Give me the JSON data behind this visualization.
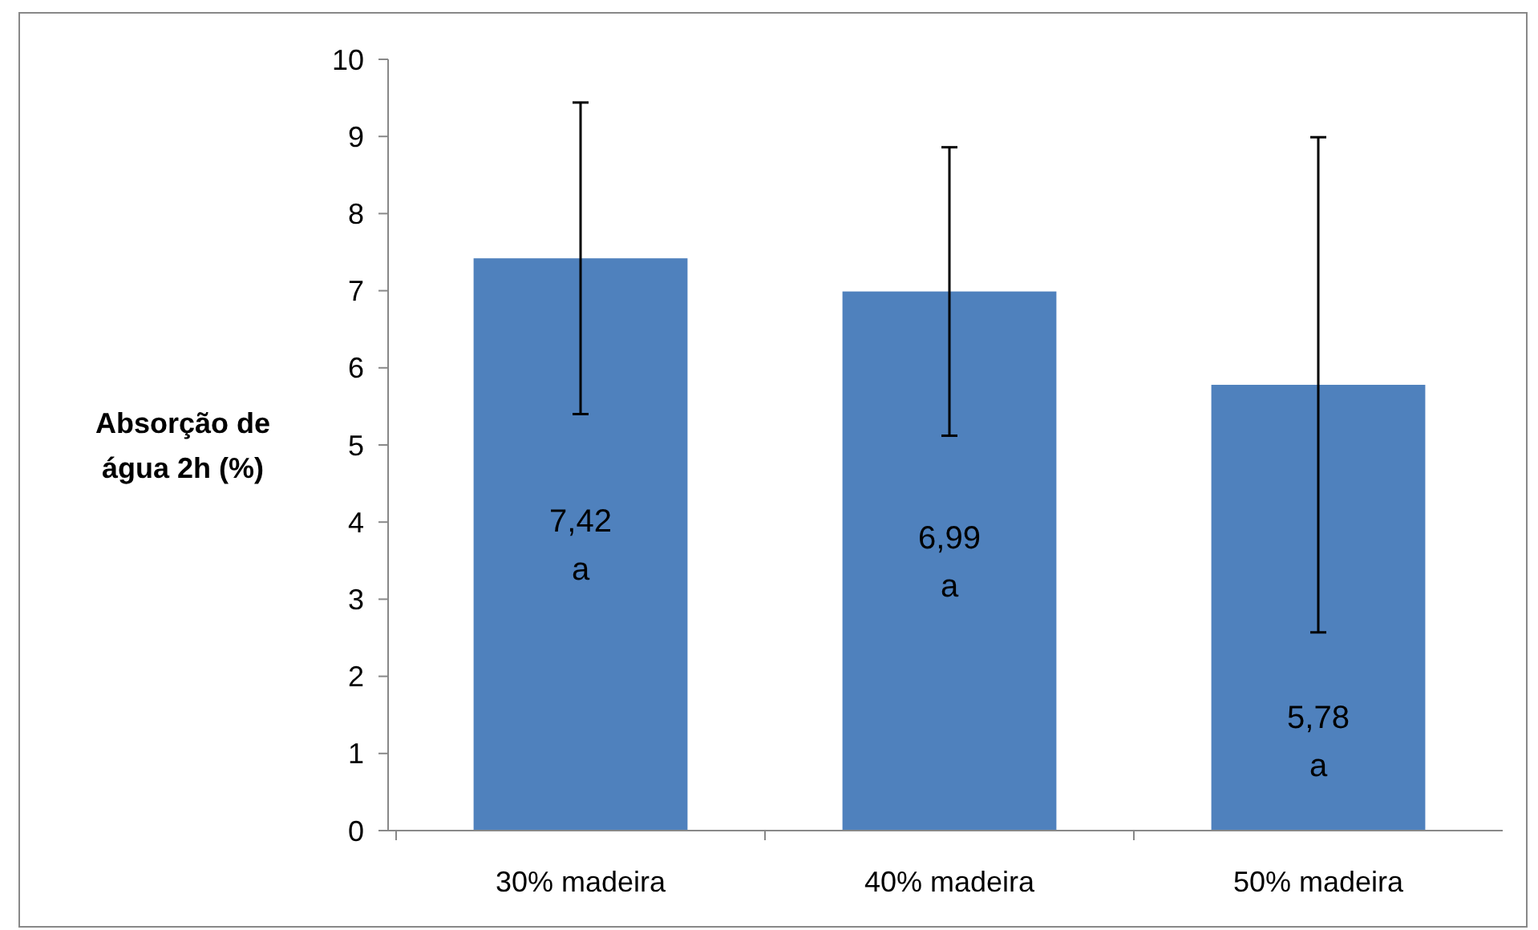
{
  "chart_data": {
    "type": "bar",
    "ylabel": "Absorção de\nágua 2h (%)",
    "categories": [
      "30% madeira",
      "40% madeira",
      "50% madeira"
    ],
    "values": [
      7.42,
      6.99,
      5.78
    ],
    "errors": [
      2.02,
      1.87,
      3.21
    ],
    "value_labels": [
      "7,42\na",
      "6,99\na",
      "5,78\na"
    ],
    "color": "#4f81bd",
    "ylim": [
      0,
      10
    ],
    "yticks": [
      0,
      1,
      2,
      3,
      4,
      5,
      6,
      7,
      8,
      9,
      10
    ],
    "grid": false
  }
}
